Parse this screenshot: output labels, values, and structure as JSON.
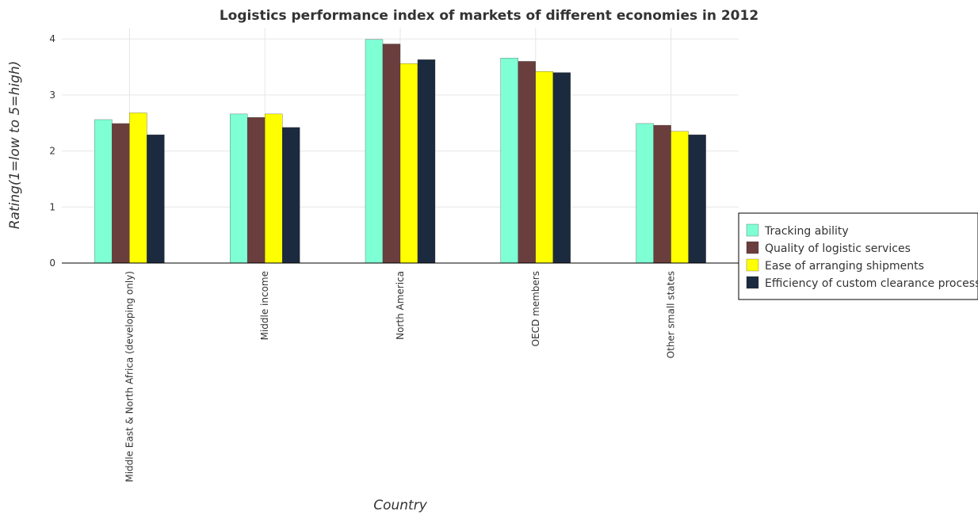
{
  "chart_data": {
    "type": "bar",
    "title": "Logistics performance index of markets of different economies in 2012",
    "xlabel": "Country",
    "ylabel": "Rating(1=low to 5=high)",
    "ylim": [
      0,
      4.2
    ],
    "yticks": [
      "0",
      "1",
      "2",
      "3",
      "4"
    ],
    "grid": true,
    "legend_position": "right",
    "categories": [
      "Middle East & North Africa (developing only)",
      "Middle income",
      "North America",
      "OECD members",
      "Other small states"
    ],
    "series": [
      {
        "name": "Tracking ability",
        "color": "#7fffd4",
        "values": [
          2.56,
          2.66,
          3.99,
          3.66,
          2.49
        ]
      },
      {
        "name": "Quality of logistic services",
        "color": "#6b3e3e",
        "values": [
          2.49,
          2.6,
          3.91,
          3.6,
          2.46
        ]
      },
      {
        "name": "Ease of arranging shipments",
        "color": "#ffff00",
        "values": [
          2.68,
          2.66,
          3.56,
          3.42,
          2.35
        ]
      },
      {
        "name": "Efficiency of custom clearance process",
        "color": "#1c2a3f",
        "values": [
          2.29,
          2.42,
          3.63,
          3.4,
          2.29
        ]
      }
    ]
  }
}
